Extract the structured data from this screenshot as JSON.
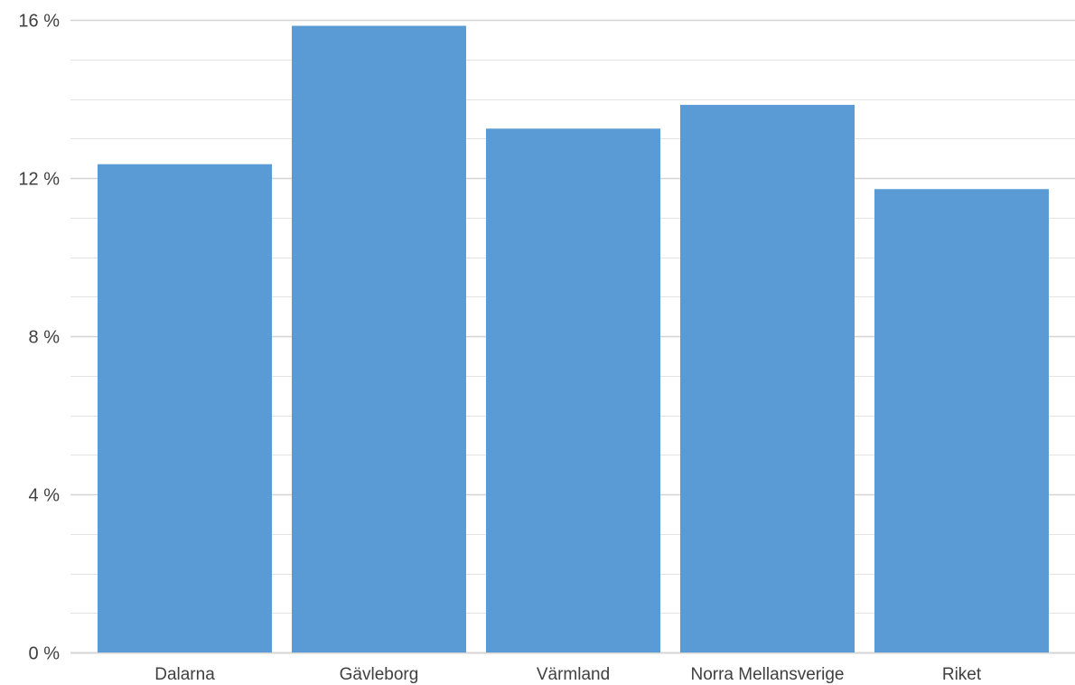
{
  "chart_data": {
    "type": "bar",
    "categories": [
      "Dalarna",
      "Gävleborg",
      "Värmland",
      "Norra Mellansverige",
      "Riket"
    ],
    "values": [
      12.35,
      15.85,
      13.25,
      13.85,
      11.72
    ],
    "y_ticks": [
      "0 %",
      "4 %",
      "8 %",
      "12 %",
      "16 %"
    ],
    "y_tick_values": [
      0,
      4,
      8,
      12,
      16
    ],
    "ylim": [
      0,
      16
    ],
    "minor_gridlines_step": 1,
    "grid": true,
    "colors": {
      "bar": "#5b9bd5",
      "major_grid": "#d4d4d4",
      "minor_grid": "#e3e3e3",
      "axis_text": "#404040"
    }
  }
}
